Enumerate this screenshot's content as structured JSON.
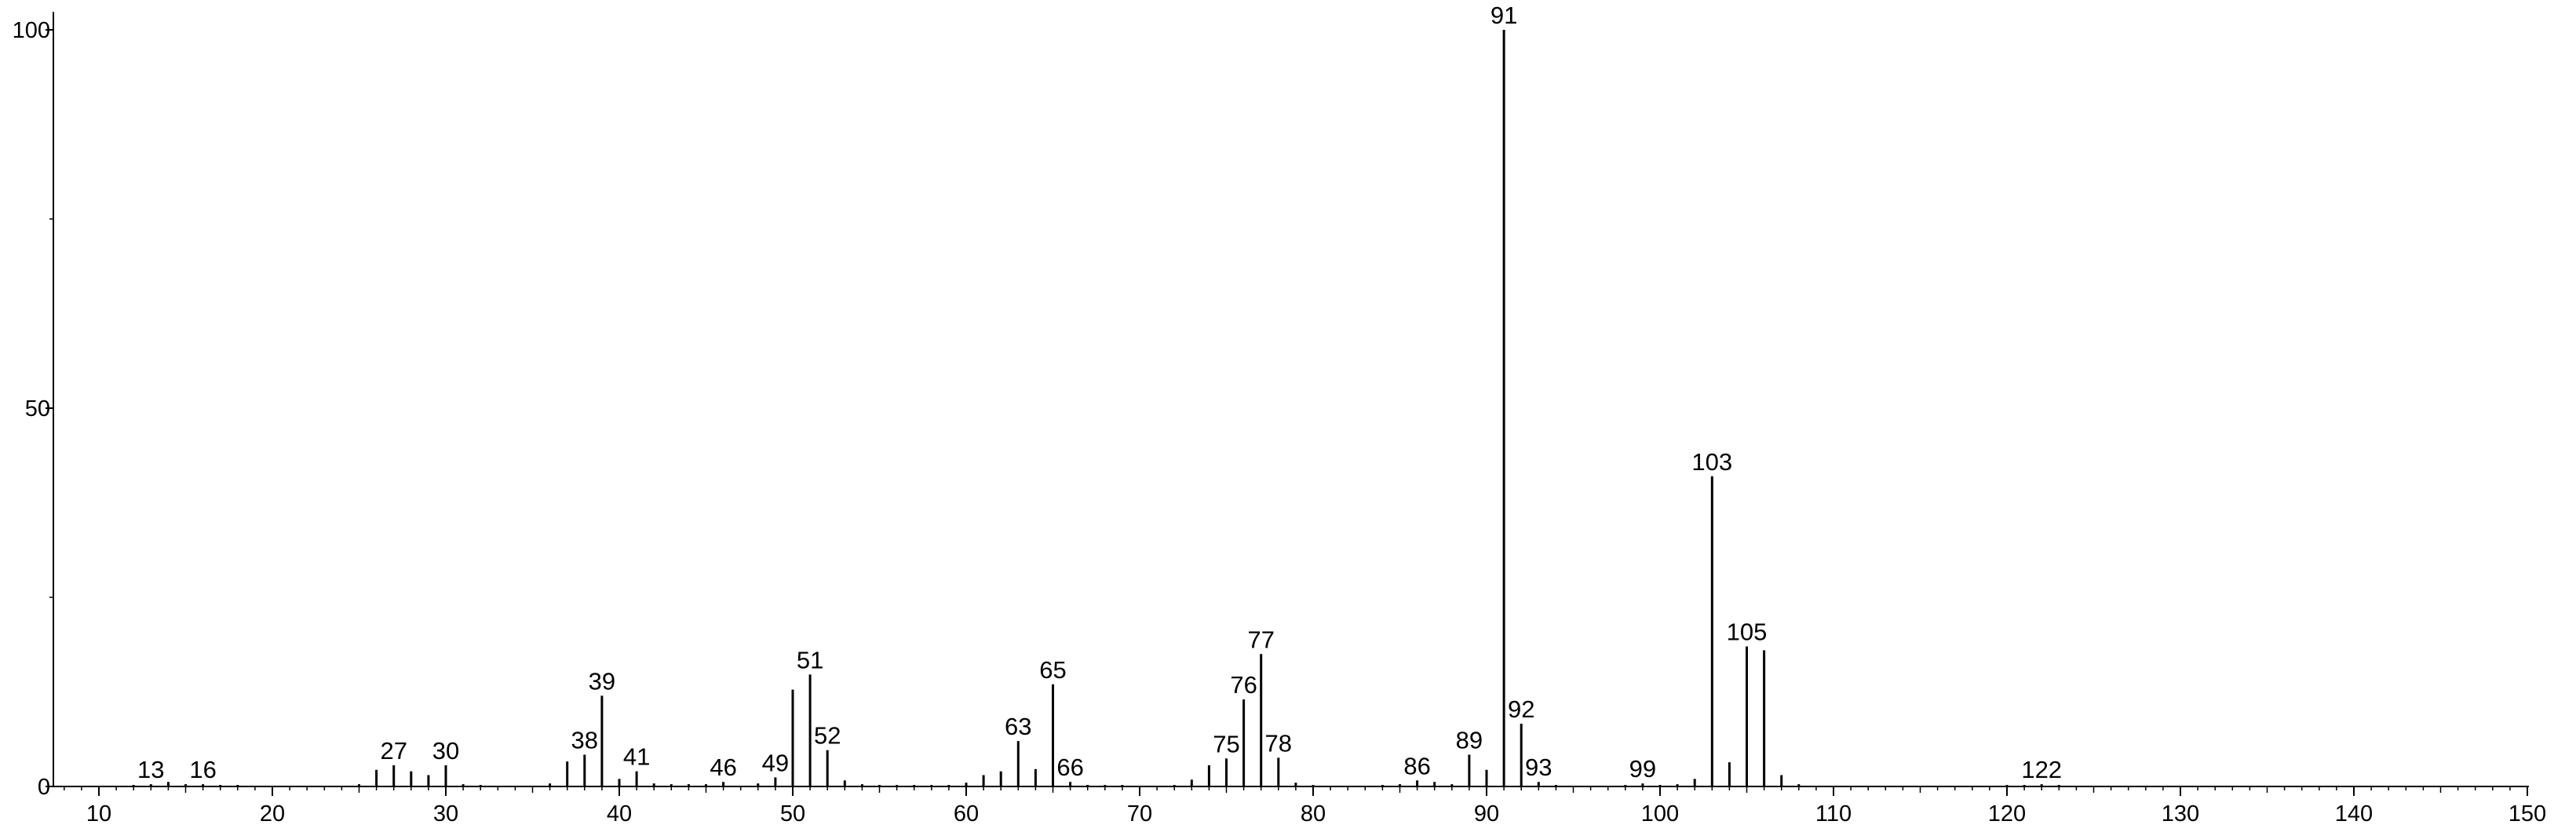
{
  "chart_data": {
    "type": "bar",
    "title": "",
    "xlabel": "",
    "ylabel": "",
    "xlim": [
      7.5,
      152
    ],
    "ylim": [
      0,
      102
    ],
    "xticks": [
      10,
      20,
      30,
      40,
      50,
      60,
      70,
      80,
      90,
      100,
      110,
      120,
      130,
      140,
      150
    ],
    "yticks": [
      0,
      50,
      100
    ],
    "grid": false,
    "peaks": [
      {
        "x": 12,
        "y": 0.2
      },
      {
        "x": 13,
        "y": 0.3
      },
      {
        "x": 14,
        "y": 0.6
      },
      {
        "x": 15,
        "y": 0.3
      },
      {
        "x": 16,
        "y": 0.3
      },
      {
        "x": 17,
        "y": 0.2
      },
      {
        "x": 18,
        "y": 0.2
      },
      {
        "x": 25,
        "y": 0.3
      },
      {
        "x": 26,
        "y": 2.2
      },
      {
        "x": 27,
        "y": 2.8
      },
      {
        "x": 28,
        "y": 2.0
      },
      {
        "x": 29,
        "y": 1.5
      },
      {
        "x": 30,
        "y": 2.8
      },
      {
        "x": 31,
        "y": 0.3
      },
      {
        "x": 32,
        "y": 0.2
      },
      {
        "x": 36,
        "y": 0.4
      },
      {
        "x": 37,
        "y": 3.3
      },
      {
        "x": 38,
        "y": 4.2
      },
      {
        "x": 39,
        "y": 12.0
      },
      {
        "x": 40,
        "y": 1.0
      },
      {
        "x": 41,
        "y": 2.0
      },
      {
        "x": 42,
        "y": 0.4
      },
      {
        "x": 43,
        "y": 0.3
      },
      {
        "x": 44,
        "y": 0.3
      },
      {
        "x": 45,
        "y": 0.3
      },
      {
        "x": 46,
        "y": 0.6
      },
      {
        "x": 48,
        "y": 0.4
      },
      {
        "x": 49,
        "y": 1.2
      },
      {
        "x": 50,
        "y": 12.8
      },
      {
        "x": 51,
        "y": 14.8
      },
      {
        "x": 52,
        "y": 4.8
      },
      {
        "x": 53,
        "y": 0.8
      },
      {
        "x": 54,
        "y": 0.3
      },
      {
        "x": 55,
        "y": 0.2
      },
      {
        "x": 56,
        "y": 0.2
      },
      {
        "x": 57,
        "y": 0.2
      },
      {
        "x": 58,
        "y": 0.2
      },
      {
        "x": 59,
        "y": 0.2
      },
      {
        "x": 60,
        "y": 0.5
      },
      {
        "x": 61,
        "y": 1.5
      },
      {
        "x": 62,
        "y": 2.0
      },
      {
        "x": 63,
        "y": 6.0
      },
      {
        "x": 64,
        "y": 2.3
      },
      {
        "x": 65,
        "y": 13.5
      },
      {
        "x": 66,
        "y": 0.6
      },
      {
        "x": 67,
        "y": 0.2
      },
      {
        "x": 68,
        "y": 0.2
      },
      {
        "x": 69,
        "y": 0.2
      },
      {
        "x": 72,
        "y": 0.2
      },
      {
        "x": 73,
        "y": 0.9
      },
      {
        "x": 74,
        "y": 2.8
      },
      {
        "x": 75,
        "y": 3.7
      },
      {
        "x": 76,
        "y": 11.5
      },
      {
        "x": 77,
        "y": 17.5
      },
      {
        "x": 78,
        "y": 3.8
      },
      {
        "x": 79,
        "y": 0.5
      },
      {
        "x": 80,
        "y": 0.2
      },
      {
        "x": 84,
        "y": 0.2
      },
      {
        "x": 85,
        "y": 0.3
      },
      {
        "x": 86,
        "y": 0.8
      },
      {
        "x": 87,
        "y": 0.6
      },
      {
        "x": 88,
        "y": 0.3
      },
      {
        "x": 89,
        "y": 4.2
      },
      {
        "x": 90,
        "y": 2.2
      },
      {
        "x": 91,
        "y": 100
      },
      {
        "x": 92,
        "y": 8.3
      },
      {
        "x": 93,
        "y": 0.6
      },
      {
        "x": 94,
        "y": 0.2
      },
      {
        "x": 98,
        "y": 0.2
      },
      {
        "x": 99,
        "y": 0.4
      },
      {
        "x": 100,
        "y": 0.2
      },
      {
        "x": 101,
        "y": 0.3
      },
      {
        "x": 102,
        "y": 1.0
      },
      {
        "x": 103,
        "y": 41.0
      },
      {
        "x": 104,
        "y": 3.2
      },
      {
        "x": 105,
        "y": 18.5
      },
      {
        "x": 106,
        "y": 18.0
      },
      {
        "x": 107,
        "y": 1.5
      },
      {
        "x": 108,
        "y": 0.3
      },
      {
        "x": 120,
        "y": 0.2
      },
      {
        "x": 121,
        "y": 0.2
      },
      {
        "x": 122,
        "y": 0.3
      },
      {
        "x": 123,
        "y": 0.2
      }
    ],
    "peak_labels": [
      {
        "x": 13,
        "text": "13"
      },
      {
        "x": 16,
        "text": "16"
      },
      {
        "x": 27,
        "text": "27"
      },
      {
        "x": 30,
        "text": "30"
      },
      {
        "x": 38,
        "text": "38"
      },
      {
        "x": 39,
        "text": "39"
      },
      {
        "x": 41,
        "text": "41"
      },
      {
        "x": 46,
        "text": "46"
      },
      {
        "x": 49,
        "text": "49"
      },
      {
        "x": 51,
        "text": "51"
      },
      {
        "x": 52,
        "text": "52"
      },
      {
        "x": 63,
        "text": "63"
      },
      {
        "x": 65,
        "text": "65"
      },
      {
        "x": 66,
        "text": "66"
      },
      {
        "x": 75,
        "text": "75"
      },
      {
        "x": 76,
        "text": "76"
      },
      {
        "x": 77,
        "text": "77"
      },
      {
        "x": 78,
        "text": "78"
      },
      {
        "x": 86,
        "text": "86"
      },
      {
        "x": 89,
        "text": "89"
      },
      {
        "x": 91,
        "text": "91"
      },
      {
        "x": 92,
        "text": "92"
      },
      {
        "x": 93,
        "text": "93"
      },
      {
        "x": 99,
        "text": "99"
      },
      {
        "x": 103,
        "text": "103"
      },
      {
        "x": 105,
        "text": "105"
      },
      {
        "x": 122,
        "text": "122"
      }
    ]
  }
}
